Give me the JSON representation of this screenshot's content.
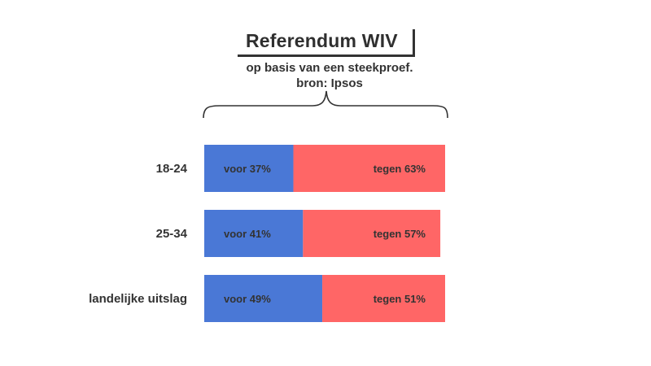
{
  "title": "Referendum WIV",
  "subtitle_line1": "op basis van een steekproef.",
  "subtitle_line2": "bron: Ipsos",
  "colors": {
    "voor": "#4a78d6",
    "tegen": "#ff6666",
    "text": "#333333"
  },
  "chart_data": {
    "type": "bar",
    "stacked": true,
    "orientation": "horizontal",
    "title": "Referendum WIV",
    "subtitle": "op basis van een steekproef. bron: Ipsos",
    "categories": [
      "18-24",
      "25-34",
      "landelijke uitslag"
    ],
    "series": [
      {
        "name": "voor",
        "values": [
          37,
          41,
          49
        ],
        "labels": [
          "voor 37%",
          "voor 41%",
          "voor 49%"
        ]
      },
      {
        "name": "tegen",
        "values": [
          63,
          57,
          51
        ],
        "labels": [
          "tegen 63%",
          "tegen 57%",
          "tegen 51%"
        ]
      }
    ],
    "xlim": [
      0,
      100
    ],
    "unit": "%",
    "legend": "none",
    "grid": false
  }
}
